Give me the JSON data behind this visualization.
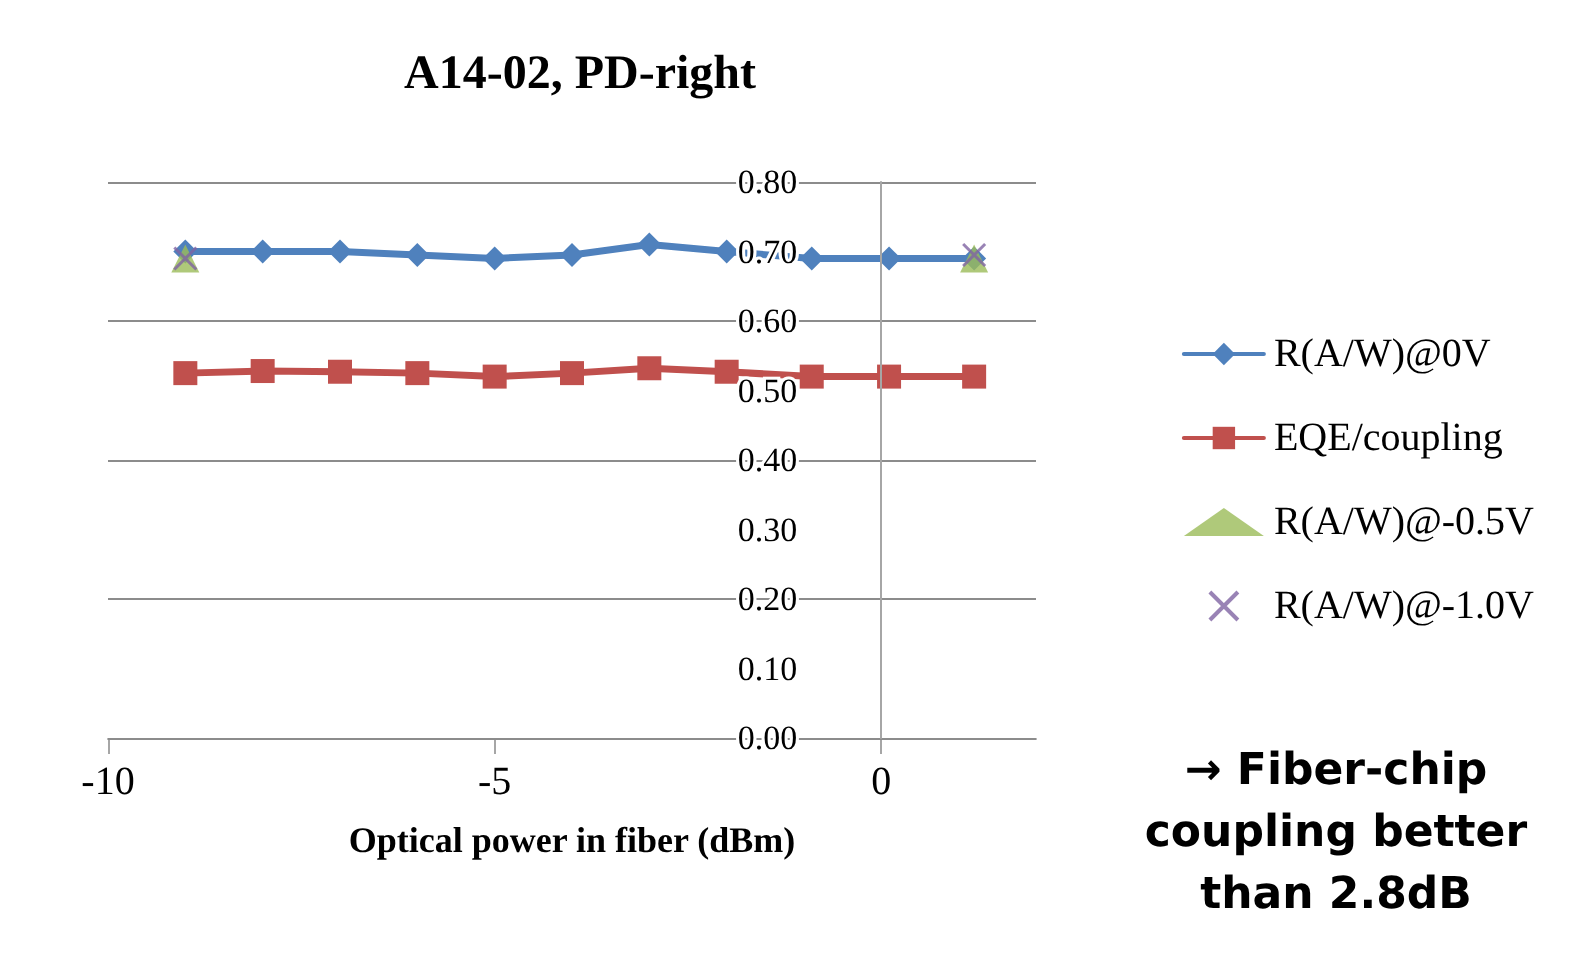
{
  "chart_data": {
    "type": "line",
    "title": "A14-02, PD-right",
    "xlabel": "Optical power in fiber (dBm)",
    "x": [
      -9,
      -8,
      -7,
      -6,
      -5,
      -4,
      -3,
      -2,
      -0.9,
      0.1,
      1.2
    ],
    "series": [
      {
        "name": "R(A/W)@0V",
        "color": "#4f81bd",
        "marker": "diamond",
        "values": [
          0.7,
          0.7,
          0.7,
          0.695,
          0.69,
          0.695,
          0.71,
          0.7,
          0.69,
          0.69,
          0.69
        ]
      },
      {
        "name": "EQE/coupling",
        "color": "#c0504d",
        "marker": "square",
        "values": [
          0.525,
          0.528,
          0.527,
          0.525,
          0.52,
          0.525,
          0.532,
          0.527,
          0.52,
          0.52,
          0.52
        ]
      },
      {
        "name": "R(A/W)@-0.5V",
        "type": "scatter",
        "color": "#9bbb59",
        "marker": "triangle",
        "values": [
          0.69,
          null,
          null,
          null,
          null,
          null,
          null,
          null,
          null,
          null,
          0.69
        ]
      },
      {
        "name": "R(A/W)@-1.0V",
        "type": "scatter",
        "color": "#8064a2",
        "marker": "cross",
        "values": [
          0.69,
          null,
          null,
          null,
          null,
          null,
          null,
          null,
          null,
          null,
          0.695
        ]
      }
    ],
    "xlim": [
      -10,
      2
    ],
    "xticks": [
      -10,
      -5,
      0
    ],
    "ylim": [
      0,
      0.8
    ],
    "yticks": [
      {
        "value": 0,
        "label": "0.00"
      },
      {
        "value": 0.1,
        "label": "0.10"
      },
      {
        "value": 0.2,
        "label": "0.20"
      },
      {
        "value": 0.3,
        "label": "0.30"
      },
      {
        "value": 0.4,
        "label": "0.40"
      },
      {
        "value": 0.5,
        "label": "0.50"
      },
      {
        "value": 0.6,
        "label": "0.60"
      },
      {
        "value": 0.7,
        "label": "0.70"
      },
      {
        "value": 0.8,
        "label": "0.80"
      }
    ],
    "grid": "y",
    "legend": "right",
    "annotations": [
      "→ Fiber-chip coupling better than 2.8dB"
    ]
  }
}
